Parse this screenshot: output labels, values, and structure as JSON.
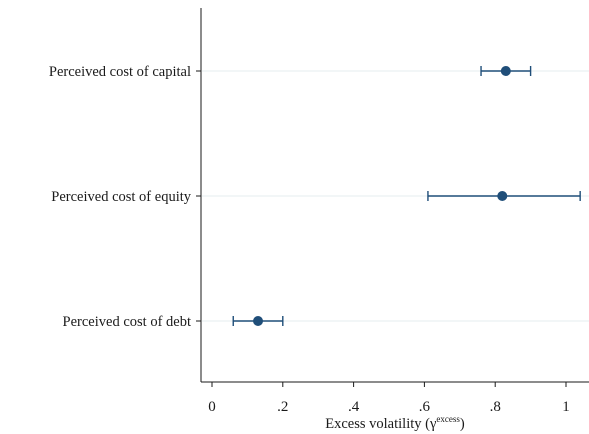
{
  "chart_data": {
    "type": "scatter",
    "subtype": "coefficient-plot-with-confidence-intervals",
    "orientation": "horizontal",
    "categories": [
      "Perceived cost of capital",
      "Perceived cost of equity",
      "Perceived cost of debt"
    ],
    "series": [
      {
        "values": [
          0.83,
          0.82,
          0.13
        ],
        "ci_low": [
          0.76,
          0.61,
          0.06
        ],
        "ci_high": [
          0.9,
          1.04,
          0.2
        ]
      }
    ],
    "xlabel": "Excess volatility (γ",
    "xlabel_sup": "excess",
    "xlabel_suffix": ")",
    "xlim": [
      -0.03,
      1.07
    ],
    "xticks": [
      0,
      0.2,
      0.4,
      0.6,
      0.8,
      1
    ],
    "xtick_labels": [
      "0",
      ".2",
      ".4",
      ".6",
      ".8",
      "1"
    ],
    "grid": "horizontal",
    "legend": "none",
    "colors": {
      "marker": "#1f4e79",
      "gridline": "#e6ecef",
      "axis": "#1a1a1a"
    }
  }
}
